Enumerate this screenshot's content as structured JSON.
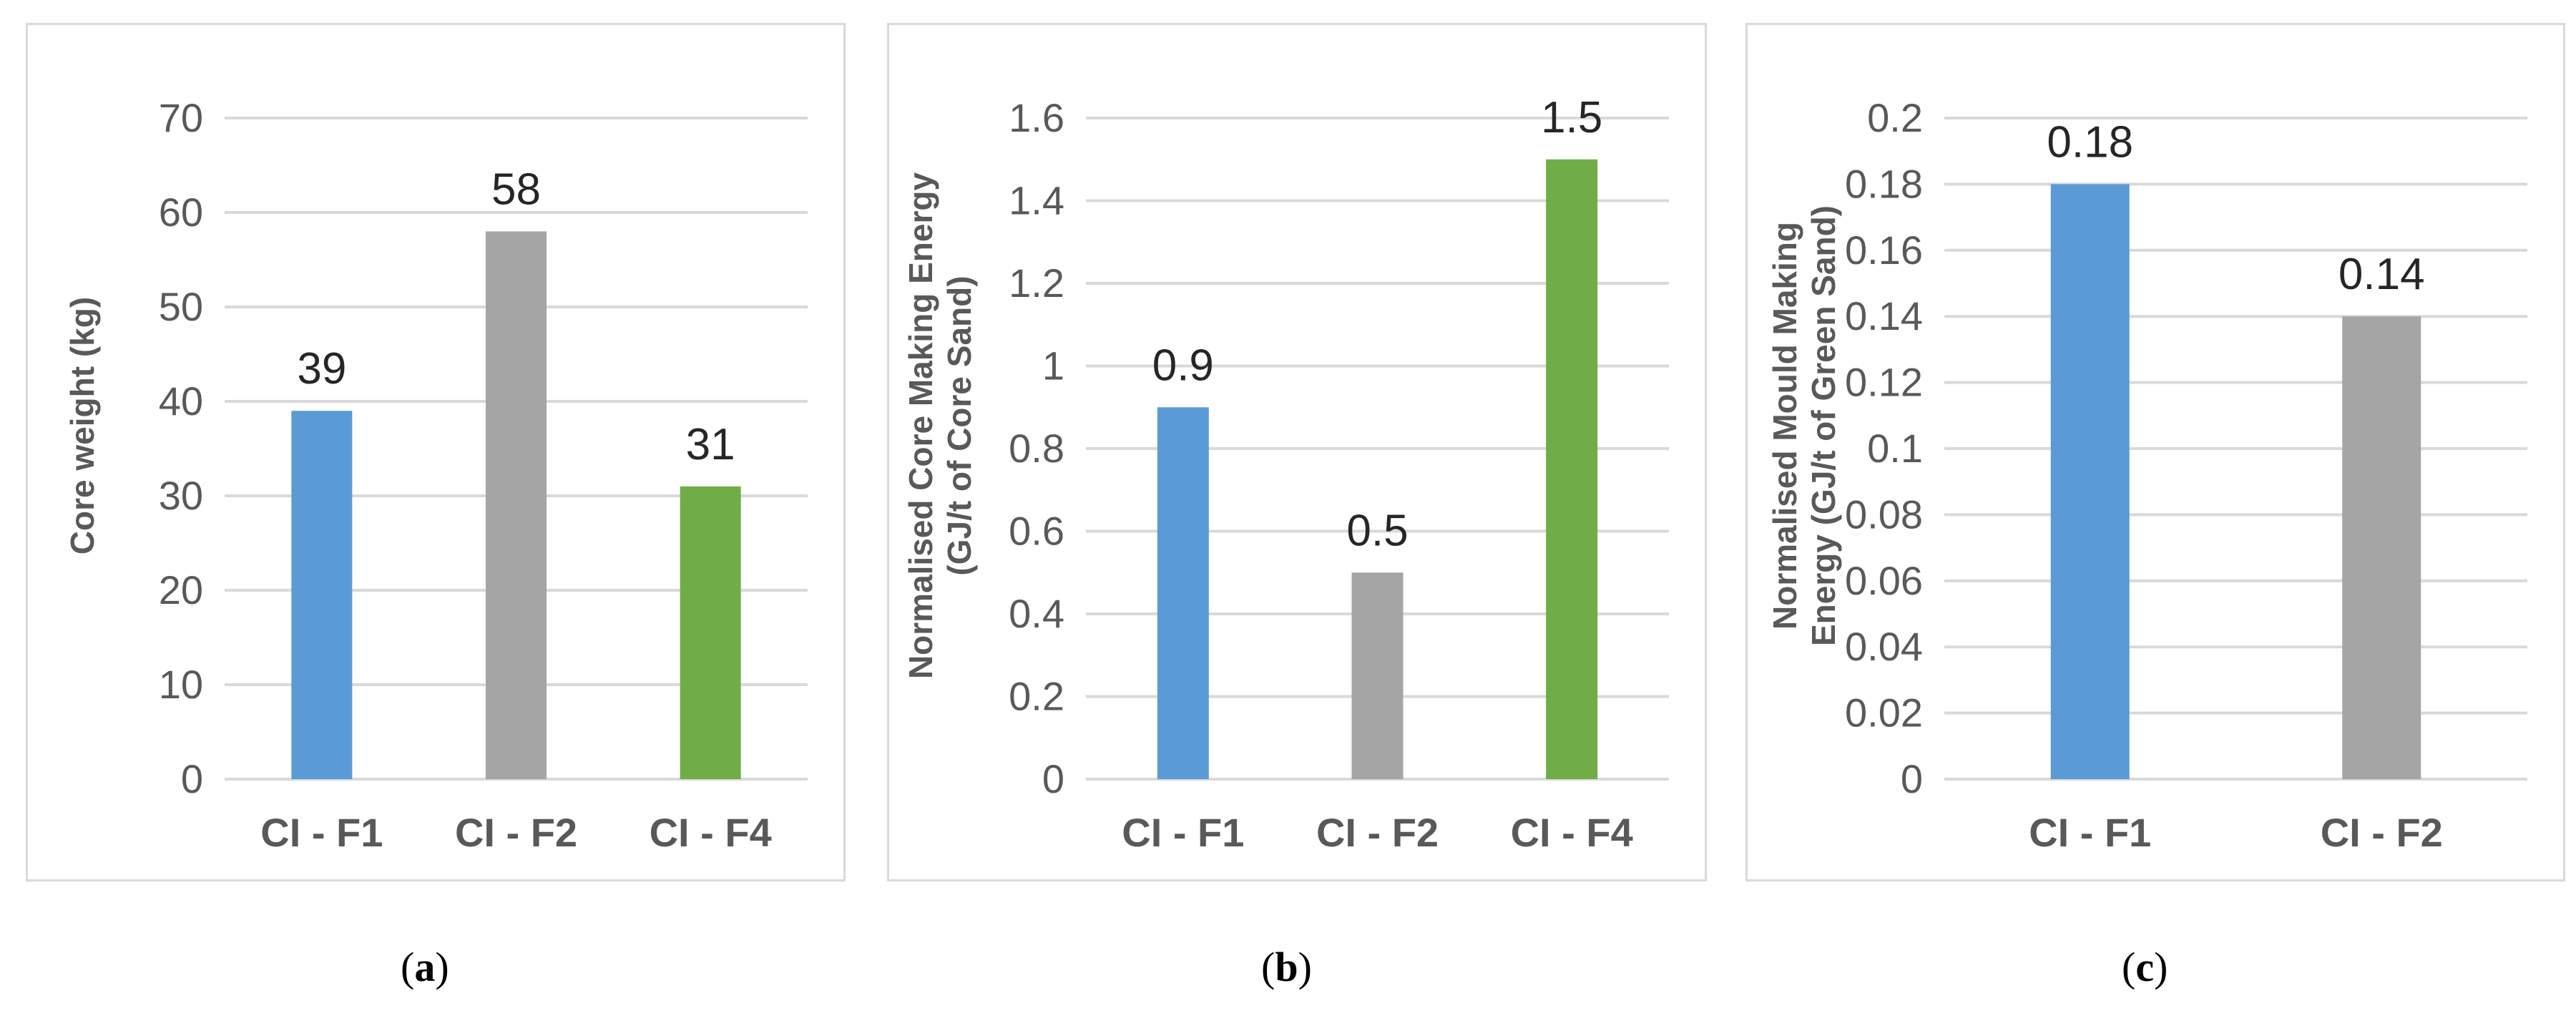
{
  "colors": {
    "blue": "#5b9bd5",
    "gray": "#a5a5a5",
    "green": "#70ad47",
    "grid": "#d9d9d9",
    "text": "#595959"
  },
  "chart_data": [
    {
      "type": "bar",
      "caption": {
        "open": "(",
        "letter": "a",
        "close": ")"
      },
      "categories": [
        "CI - F1",
        "CI - F2",
        "CI - F4"
      ],
      "values": [
        39,
        58,
        31
      ],
      "data_labels": [
        "39",
        "58",
        "31"
      ],
      "bar_colors": [
        "#5b9bd5",
        "#a5a5a5",
        "#70ad47"
      ],
      "ylabel": [
        "Core weight (kg)"
      ],
      "ylim": [
        0,
        70
      ],
      "yticks": [
        0,
        10,
        20,
        30,
        40,
        50,
        60,
        70
      ],
      "ytick_labels": [
        "0",
        "10",
        "20",
        "30",
        "40",
        "50",
        "60",
        "70"
      ],
      "grid": true
    },
    {
      "type": "bar",
      "caption": {
        "open": "(",
        "letter": "b",
        "close": ")"
      },
      "categories": [
        "CI - F1",
        "CI - F2",
        "CI - F4"
      ],
      "values": [
        0.9,
        0.5,
        1.5
      ],
      "data_labels": [
        "0.9",
        "0.5",
        "1.5"
      ],
      "bar_colors": [
        "#5b9bd5",
        "#a5a5a5",
        "#70ad47"
      ],
      "ylabel": [
        "Normalised Core Making Energy",
        "(GJ/t of Core Sand)"
      ],
      "ylim": [
        0,
        1.6
      ],
      "yticks": [
        0,
        0.2,
        0.4,
        0.6,
        0.8,
        1,
        1.2,
        1.4,
        1.6
      ],
      "ytick_labels": [
        "0",
        "0.2",
        "0.4",
        "0.6",
        "0.8",
        "1",
        "1.2",
        "1.4",
        "1.6"
      ],
      "grid": true
    },
    {
      "type": "bar",
      "caption": {
        "open": "(",
        "letter": "c",
        "close": ")"
      },
      "categories": [
        "CI - F1",
        "CI - F2"
      ],
      "values": [
        0.18,
        0.14
      ],
      "data_labels": [
        "0.18",
        "0.14"
      ],
      "bar_colors": [
        "#5b9bd5",
        "#a5a5a5"
      ],
      "ylabel": [
        "Normalised Mould Making",
        "Energy (GJ/t of Green Sand)"
      ],
      "ylim": [
        0,
        0.2
      ],
      "yticks": [
        0,
        0.02,
        0.04,
        0.06,
        0.08,
        0.1,
        0.12,
        0.14,
        0.16,
        0.18,
        0.2
      ],
      "ytick_labels": [
        "0",
        "0.02",
        "0.04",
        "0.06",
        "0.08",
        "0.1",
        "0.12",
        "0.14",
        "0.16",
        "0.18",
        "0.2"
      ],
      "grid": true
    }
  ]
}
